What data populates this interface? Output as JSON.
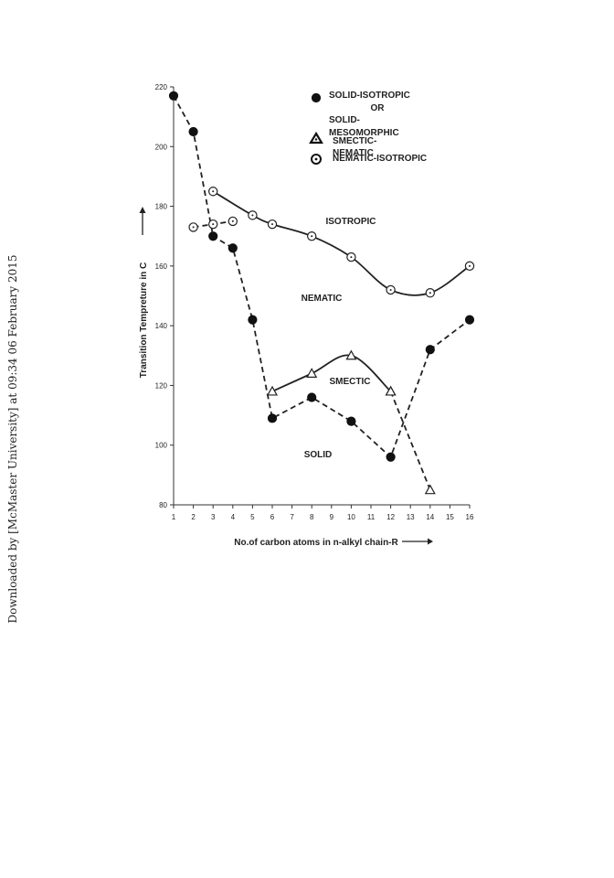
{
  "side_note": "Downloaded by [McMaster University] at 09:34 06 February 2015",
  "chart_data": {
    "type": "line",
    "title": "",
    "xlabel": "No.of carbon atoms in n-alkyl chain-R",
    "ylabel": "Transition Tempreture in C",
    "xlim": [
      1,
      16
    ],
    "ylim": [
      80,
      220
    ],
    "x_ticks": [
      "1",
      "2",
      "3",
      "4",
      "5",
      "6",
      "7",
      "8",
      "9",
      "10",
      "11",
      "12",
      "13",
      "14",
      "15",
      "16"
    ],
    "y_ticks": [
      "80",
      "100",
      "120",
      "140",
      "160",
      "180",
      "200",
      "220"
    ],
    "grid": false,
    "legend": [
      {
        "symbol": "filled-circle",
        "lines": [
          "SOLID-ISOTROPIC",
          "OR",
          "SOLID-",
          "MESOMORPHIC"
        ]
      },
      {
        "symbol": "triangle",
        "lines": [
          "SMECTIC-",
          "NEMATIC"
        ]
      },
      {
        "symbol": "circle-dot",
        "lines": [
          "NEMATIC-ISOTROPIC"
        ]
      }
    ],
    "regions": [
      "ISOTROPIC",
      "NEMATIC",
      "SMECTIC",
      "SOLID"
    ],
    "series": [
      {
        "name": "SOLID-ISOTROPIC OR SOLID-MESOMORPHIC",
        "marker": "filled-circle",
        "line": "dashed",
        "x": [
          1,
          2,
          3,
          4,
          5,
          6,
          8,
          10,
          12,
          14,
          16
        ],
        "y": [
          217,
          205,
          170,
          166,
          142,
          109,
          116,
          108,
          96,
          132,
          142
        ]
      },
      {
        "name": "NEMATIC-ISOTROPIC",
        "marker": "circle-dot",
        "line": "dashed",
        "x": [
          2,
          3,
          4
        ],
        "y": [
          173,
          174,
          175
        ]
      },
      {
        "name": "NEMATIC-ISOTROPIC",
        "marker": "circle-dot",
        "line": "solid",
        "x": [
          3,
          5,
          6,
          8,
          10,
          12,
          14,
          16
        ],
        "y": [
          185,
          177,
          174,
          170,
          163,
          152,
          151,
          160
        ]
      },
      {
        "name": "SMECTIC-NEMATIC",
        "marker": "triangle",
        "line": "solid",
        "x": [
          6,
          8,
          10,
          12
        ],
        "y": [
          118,
          124,
          130,
          118
        ]
      },
      {
        "name": "SMECTIC-NEMATIC",
        "marker": "triangle",
        "line": "dashed",
        "x": [
          12,
          14
        ],
        "y": [
          118,
          85
        ]
      }
    ]
  }
}
